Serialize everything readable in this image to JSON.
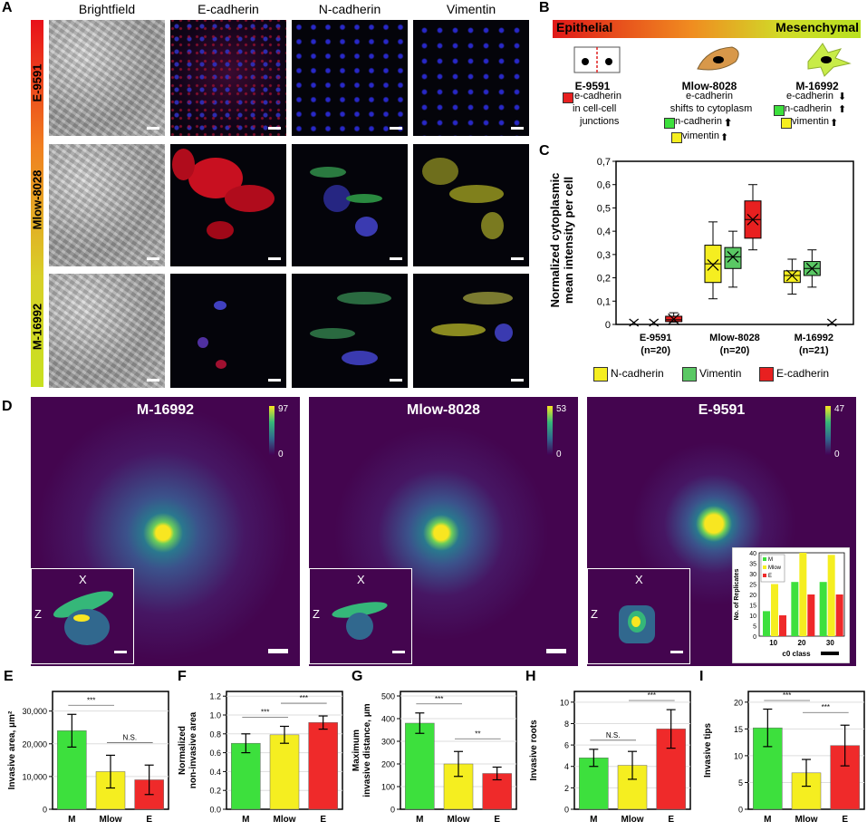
{
  "panel_a": {
    "label": "A",
    "columns": [
      "Brightfield",
      "E-cadherin",
      "N-cadherin",
      "Vimentin"
    ],
    "rows": [
      "E-9591",
      "Mlow-8028",
      "M-16992"
    ]
  },
  "panel_b": {
    "label": "B",
    "gradient_left": "Epithelial",
    "gradient_right": "Mesenchymal",
    "cells": [
      {
        "name": "E-9591",
        "lines": [
          "e-cadherin",
          "in cell-cell",
          "junctions"
        ]
      },
      {
        "name": "Mlow-8028",
        "lines": [
          "e-cadherin",
          "shifts to cytoplasm",
          "n-cadherin",
          "vimentin"
        ]
      },
      {
        "name": "M-16992",
        "lines": [
          "e-cadherin",
          "n-cadherin",
          "vimentin"
        ]
      }
    ]
  },
  "panel_c": {
    "label": "C",
    "ylabel": "Normalized cytoplasmic\nmean intensity per cell",
    "yticks": [
      "0",
      "0,1",
      "0,2",
      "0,3",
      "0,4",
      "0,5",
      "0,6",
      "0,7"
    ],
    "groups": [
      {
        "name": "E-9591",
        "n": "(n=20)"
      },
      {
        "name": "Mlow-8028",
        "n": "(n=20)"
      },
      {
        "name": "M-16992",
        "n": "(n=21)"
      }
    ],
    "legend": [
      "N-cadherin",
      "Vimentin",
      "E-cadherin"
    ],
    "colors": {
      "ncad": "#f5ee20",
      "vim": "#5ac864",
      "ecad": "#e82020"
    }
  },
  "panel_d": {
    "label": "D",
    "panels": [
      {
        "title": "M-16992",
        "cmax": "97",
        "cmin": "0"
      },
      {
        "title": "Mlow-8028",
        "cmax": "53",
        "cmin": "0"
      },
      {
        "title": "E-9591",
        "cmax": "47",
        "cmin": "0"
      }
    ],
    "inset_x": "X",
    "inset_z": "Z",
    "hist": {
      "ylabel": "No. of Replicates",
      "xlabel": "c0 class",
      "legend": [
        "M",
        "Mlow",
        "E"
      ],
      "yticks": [
        "0",
        "5",
        "10",
        "15",
        "20",
        "25",
        "30",
        "35",
        "40"
      ],
      "xticks": [
        "10",
        "20",
        "30"
      ]
    }
  },
  "chart_data": [
    {
      "type": "box",
      "title": "",
      "ylabel": "Normalized cytoplasmic mean intensity per cell",
      "categories": [
        "E-9591 (n=20)",
        "Mlow-8028 (n=20)",
        "M-16992 (n=21)"
      ],
      "ylim": [
        0,
        0.7
      ],
      "series": [
        {
          "name": "N-cadherin",
          "boxes": [
            null,
            {
              "min": 0.11,
              "q1": 0.18,
              "median": 0.26,
              "q3": 0.34,
              "max": 0.44,
              "mean": 0.255
            },
            {
              "min": 0.13,
              "q1": 0.18,
              "median": 0.21,
              "q3": 0.23,
              "max": 0.28,
              "mean": 0.21
            }
          ]
        },
        {
          "name": "Vimentin",
          "boxes": [
            null,
            {
              "min": 0.16,
              "q1": 0.24,
              "median": 0.29,
              "q3": 0.33,
              "max": 0.4,
              "mean": 0.29
            },
            {
              "min": 0.16,
              "q1": 0.21,
              "median": 0.24,
              "q3": 0.27,
              "max": 0.32,
              "mean": 0.24
            }
          ]
        },
        {
          "name": "E-cadherin",
          "boxes": [
            {
              "min": 0.01,
              "q1": 0.012,
              "median": 0.02,
              "q3": 0.035,
              "max": 0.05,
              "mean": 0.022
            },
            {
              "min": 0.32,
              "q1": 0.37,
              "median": 0.45,
              "q3": 0.53,
              "max": 0.6,
              "mean": 0.45
            },
            null
          ]
        }
      ]
    },
    {
      "type": "bar",
      "title": "",
      "ylabel": "No. of Replicates",
      "xlabel": "c0 class",
      "categories": [
        "10",
        "20",
        "30"
      ],
      "ylim": [
        0,
        40
      ],
      "series": [
        {
          "name": "M",
          "values": [
            12,
            26,
            26
          ]
        },
        {
          "name": "Mlow",
          "values": [
            25,
            40,
            39
          ]
        },
        {
          "name": "E",
          "values": [
            10,
            20,
            20
          ]
        }
      ]
    },
    {
      "type": "bar",
      "label": "E",
      "ylabel": "Invasive area, μm²",
      "categories": [
        "M",
        "Mlow",
        "E"
      ],
      "values": [
        24000,
        11500,
        9000
      ],
      "errors": [
        5000,
        5000,
        4500
      ],
      "yticks": [
        "0",
        "10,000",
        "20,000",
        "30,000"
      ],
      "ylim": [
        0,
        36000
      ],
      "sig": [
        {
          "from": 0,
          "to": 1,
          "text": "***"
        },
        {
          "from": 1,
          "to": 2,
          "text": "N.S."
        }
      ]
    },
    {
      "type": "bar",
      "label": "F",
      "ylabel": "Normalized non-invasive area",
      "categories": [
        "M",
        "Mlow",
        "E"
      ],
      "values": [
        0.7,
        0.79,
        0.92
      ],
      "errors": [
        0.1,
        0.09,
        0.07
      ],
      "yticks": [
        "0.0",
        "0.2",
        "0.4",
        "0.6",
        "0.8",
        "1.0",
        "1.2"
      ],
      "ylim": [
        0,
        1.25
      ],
      "sig": [
        {
          "from": 0,
          "to": 1,
          "text": "***"
        },
        {
          "from": 1,
          "to": 2,
          "text": "***"
        }
      ]
    },
    {
      "type": "bar",
      "label": "G",
      "ylabel": "Maximum invasive distance, μm",
      "categories": [
        "M",
        "Mlow",
        "E"
      ],
      "values": [
        380,
        200,
        158
      ],
      "errors": [
        45,
        55,
        28
      ],
      "yticks": [
        "0",
        "100",
        "200",
        "300",
        "400",
        "500"
      ],
      "ylim": [
        0,
        520
      ],
      "sig": [
        {
          "from": 0,
          "to": 1,
          "text": "***"
        },
        {
          "from": 1,
          "to": 2,
          "text": "**"
        }
      ]
    },
    {
      "type": "bar",
      "label": "H",
      "ylabel": "Invasive roots",
      "categories": [
        "M",
        "Mlow",
        "E"
      ],
      "values": [
        4.8,
        4.1,
        7.5
      ],
      "errors": [
        0.8,
        1.3,
        1.8
      ],
      "yticks": [
        "0",
        "2",
        "4",
        "6",
        "8",
        "10"
      ],
      "ylim": [
        0,
        11
      ],
      "sig": [
        {
          "from": 0,
          "to": 1,
          "text": "N.S."
        },
        {
          "from": 1,
          "to": 2,
          "text": "***"
        }
      ]
    },
    {
      "type": "bar",
      "label": "I",
      "ylabel": "Invasive tips",
      "categories": [
        "M",
        "Mlow",
        "E"
      ],
      "values": [
        15.2,
        6.8,
        11.9
      ],
      "errors": [
        3.5,
        2.5,
        3.8
      ],
      "yticks": [
        "0",
        "5",
        "10",
        "15",
        "20"
      ],
      "ylim": [
        0,
        22
      ],
      "sig": [
        {
          "from": 0,
          "to": 1,
          "text": "***"
        },
        {
          "from": 1,
          "to": 2,
          "text": "***"
        }
      ]
    }
  ],
  "bar_colors": [
    "#3de03d",
    "#f5ee20",
    "#ef2a2a"
  ]
}
